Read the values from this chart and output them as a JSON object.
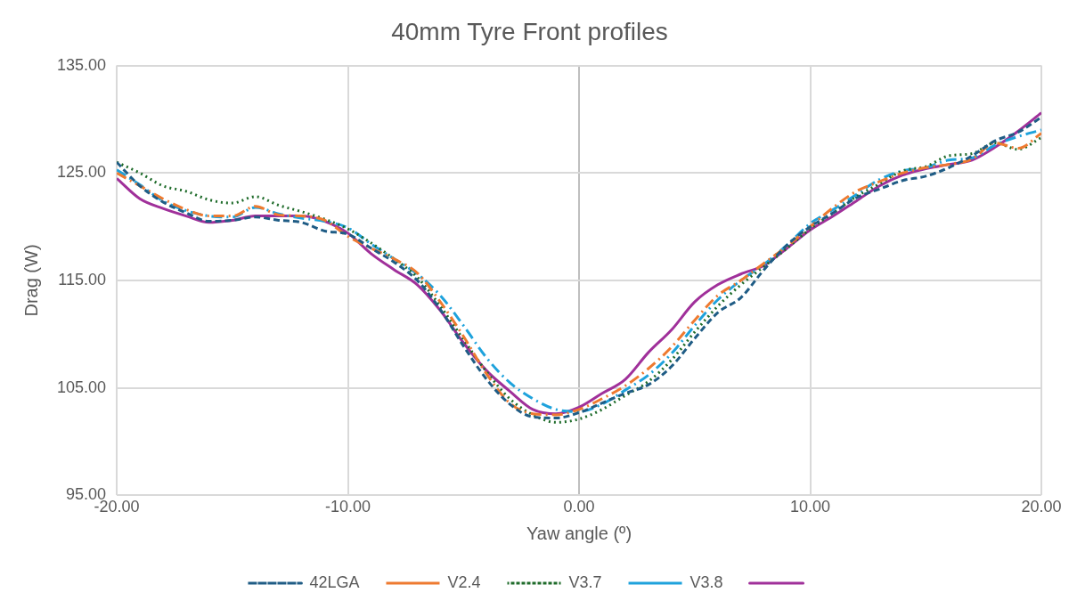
{
  "chart_data": {
    "type": "line",
    "title": "40mm Tyre Front profiles",
    "xlabel": "Yaw angle (º)",
    "ylabel": "Drag (W)",
    "x": [
      -20,
      -19,
      -18,
      -17,
      -16,
      -15,
      -14,
      -13,
      -12,
      -11,
      -10,
      -9,
      -8,
      -7,
      -6,
      -5,
      -4,
      -3,
      -2,
      -1,
      0,
      1,
      2,
      3,
      4,
      5,
      6,
      7,
      8,
      9,
      10,
      11,
      12,
      13,
      14,
      15,
      16,
      17,
      18,
      19,
      20
    ],
    "xlim": [
      -20,
      20
    ],
    "xticks": [
      {
        "value": -20,
        "label": "-20.00"
      },
      {
        "value": -10,
        "label": "-10.00"
      },
      {
        "value": 0,
        "label": "0.00"
      },
      {
        "value": 10,
        "label": "10.00"
      },
      {
        "value": 20,
        "label": "20.00"
      }
    ],
    "ylim": [
      95,
      135
    ],
    "yticks": [
      {
        "value": 95,
        "label": "95.00"
      },
      {
        "value": 105,
        "label": "105.00"
      },
      {
        "value": 115,
        "label": "115.00"
      },
      {
        "value": 125,
        "label": "125.00"
      },
      {
        "value": 135,
        "label": "135.00"
      }
    ],
    "grid": true,
    "legend": "bottom",
    "marker": "none",
    "series": [
      {
        "name": "42LGA",
        "color": "#1f5c85",
        "line_style": "dashed",
        "values": [
          126.0,
          123.8,
          122.3,
          121.3,
          120.5,
          120.6,
          120.9,
          120.6,
          120.4,
          119.6,
          119.3,
          118.0,
          116.7,
          115.0,
          112.3,
          108.9,
          105.8,
          103.5,
          102.3,
          102.2,
          102.7,
          103.6,
          104.5,
          105.3,
          107.0,
          109.6,
          112.0,
          113.4,
          116.0,
          118.3,
          120.0,
          121.3,
          122.7,
          123.5,
          124.3,
          124.7,
          125.5,
          126.6,
          128.0,
          128.8,
          130.2
        ]
      },
      {
        "name": "V2.4",
        "color": "#ee7a30",
        "line_style": "dashdot",
        "values": [
          125.0,
          123.8,
          122.6,
          121.6,
          121.0,
          121.0,
          121.9,
          121.1,
          121.0,
          120.6,
          119.1,
          118.0,
          117.0,
          115.7,
          113.0,
          109.8,
          106.3,
          103.6,
          102.6,
          102.5,
          103.0,
          104.0,
          105.2,
          106.8,
          108.8,
          111.3,
          113.6,
          115.0,
          116.6,
          118.2,
          120.0,
          121.8,
          123.3,
          124.2,
          125.0,
          125.5,
          125.8,
          126.3,
          127.8,
          127.3,
          128.7
        ]
      },
      {
        "name": "V3.7",
        "color": "#1e6b2a",
        "line_style": "dotted",
        "values": [
          126.0,
          125.0,
          123.8,
          123.3,
          122.5,
          122.2,
          122.8,
          122.0,
          121.4,
          120.7,
          119.8,
          118.5,
          117.0,
          115.3,
          112.6,
          109.5,
          106.5,
          104.0,
          102.5,
          101.8,
          102.1,
          103.0,
          104.3,
          105.6,
          107.6,
          110.2,
          112.6,
          114.6,
          116.3,
          118.0,
          119.8,
          121.3,
          122.8,
          124.0,
          125.2,
          125.6,
          126.6,
          126.8,
          127.8,
          127.2,
          128.3
        ]
      },
      {
        "name": "V3.8",
        "color": "#1ea2dc",
        "line_style": "dashdot",
        "values": [
          125.3,
          123.9,
          122.4,
          121.5,
          121.0,
          120.9,
          121.8,
          121.2,
          120.8,
          120.5,
          119.9,
          118.4,
          117.0,
          115.6,
          113.6,
          110.8,
          107.8,
          105.5,
          104.0,
          103.0,
          102.8,
          103.5,
          104.8,
          106.2,
          108.2,
          110.8,
          113.2,
          115.0,
          116.5,
          118.3,
          120.3,
          121.6,
          123.0,
          124.4,
          125.2,
          125.5,
          126.2,
          126.4,
          127.6,
          128.4,
          129.0
        ]
      },
      {
        "color": "#a0309a",
        "line_style": "solid",
        "values": [
          124.5,
          122.6,
          121.7,
          121.0,
          120.4,
          120.6,
          121.0,
          121.0,
          121.0,
          120.5,
          119.4,
          117.5,
          116.0,
          114.6,
          112.2,
          109.2,
          106.6,
          104.7,
          103.0,
          102.6,
          103.2,
          104.5,
          105.8,
          108.3,
          110.4,
          113.0,
          114.6,
          115.6,
          116.4,
          118.0,
          119.7,
          121.0,
          122.4,
          123.8,
          124.8,
          125.4,
          125.8,
          126.2,
          127.4,
          128.9,
          130.6
        ]
      }
    ]
  }
}
